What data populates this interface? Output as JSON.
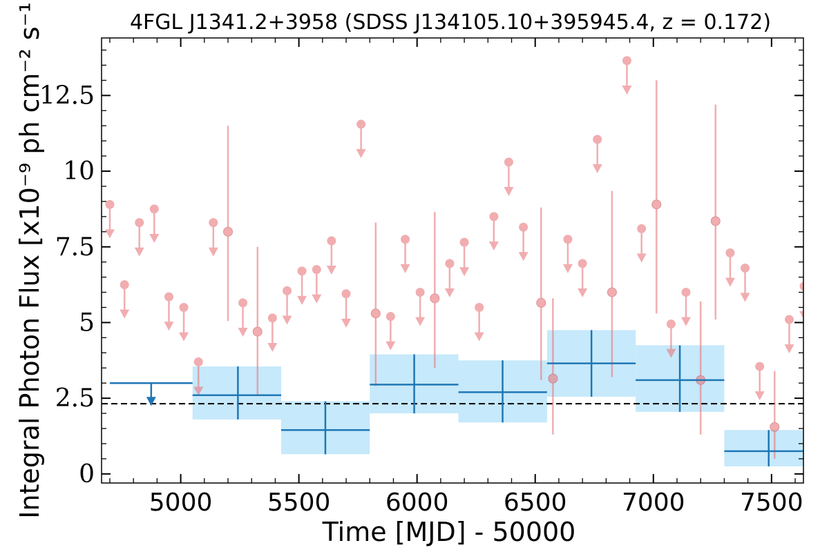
{
  "chart_data": {
    "type": "scatter",
    "title": "4FGL J1341.2+3958 (SDSS J134105.10+395945.4, z = 0.172)",
    "xlabel": "Time [MJD] - 50000",
    "ylabel": "Integral Photon Flux [x10⁻⁹ ph cm⁻² s⁻¹]",
    "xlim": [
      4665,
      7635
    ],
    "ylim": [
      -0.3,
      14.4
    ],
    "x_ticks": [
      5000,
      5500,
      6000,
      6500,
      7000,
      7500
    ],
    "x_tick_labels": [
      "5000",
      "5500",
      "6000",
      "6500",
      "7000",
      "7500"
    ],
    "y_ticks": [
      0,
      2.5,
      5,
      7.5,
      10,
      12.5
    ],
    "y_tick_labels": [
      "0",
      "2.5",
      "5",
      "7.5",
      "10",
      "12.5"
    ],
    "mean_flux": 2.32,
    "colors": {
      "short_bins": "#e8777c",
      "long_bins": "#1f77b4",
      "long_bin_band": "#c6e9fb",
      "mean_line": "#000000"
    },
    "series": [
      {
        "kind": "short_bins",
        "upper_limits": [
          {
            "x": 4700,
            "y": 8.9
          },
          {
            "x": 4762,
            "y": 6.25
          },
          {
            "x": 4825,
            "y": 8.3
          },
          {
            "x": 4888,
            "y": 8.75
          },
          {
            "x": 4950,
            "y": 5.85
          },
          {
            "x": 5013,
            "y": 5.5
          },
          {
            "x": 5075,
            "y": 3.7
          },
          {
            "x": 5138,
            "y": 8.3
          },
          {
            "x": 5263,
            "y": 5.65
          },
          {
            "x": 5388,
            "y": 5.15
          },
          {
            "x": 5450,
            "y": 6.05
          },
          {
            "x": 5513,
            "y": 6.7
          },
          {
            "x": 5575,
            "y": 6.75
          },
          {
            "x": 5638,
            "y": 7.7
          },
          {
            "x": 5700,
            "y": 5.95
          },
          {
            "x": 5763,
            "y": 11.55
          },
          {
            "x": 5888,
            "y": 5.2
          },
          {
            "x": 5950,
            "y": 7.75
          },
          {
            "x": 6013,
            "y": 6.0
          },
          {
            "x": 6138,
            "y": 6.95
          },
          {
            "x": 6200,
            "y": 7.65
          },
          {
            "x": 6263,
            "y": 5.5
          },
          {
            "x": 6325,
            "y": 8.5
          },
          {
            "x": 6388,
            "y": 10.3
          },
          {
            "x": 6450,
            "y": 8.15
          },
          {
            "x": 6638,
            "y": 7.75
          },
          {
            "x": 6700,
            "y": 6.95
          },
          {
            "x": 6763,
            "y": 11.05
          },
          {
            "x": 6888,
            "y": 13.65
          },
          {
            "x": 6950,
            "y": 8.1
          },
          {
            "x": 7075,
            "y": 4.95
          },
          {
            "x": 7138,
            "y": 6.0
          },
          {
            "x": 7325,
            "y": 7.3
          },
          {
            "x": 7388,
            "y": 6.8
          },
          {
            "x": 7450,
            "y": 3.55
          },
          {
            "x": 7575,
            "y": 5.1
          },
          {
            "x": 7638,
            "y": 6.2
          }
        ],
        "detections": [
          {
            "x": 5200,
            "y": 8.0,
            "ylo": 5.05,
            "yhi": 11.5
          },
          {
            "x": 5325,
            "y": 4.7,
            "ylo": 2.6,
            "yhi": 7.5
          },
          {
            "x": 5825,
            "y": 5.3,
            "ylo": 2.9,
            "yhi": 8.3
          },
          {
            "x": 6075,
            "y": 5.8,
            "ylo": 3.5,
            "yhi": 8.65
          },
          {
            "x": 6525,
            "y": 5.65,
            "ylo": 3.1,
            "yhi": 8.8
          },
          {
            "x": 6575,
            "y": 3.15,
            "ylo": 1.3,
            "yhi": 5.8
          },
          {
            "x": 6825,
            "y": 6.0,
            "ylo": 3.2,
            "yhi": 9.35
          },
          {
            "x": 7013,
            "y": 8.9,
            "ylo": 5.3,
            "yhi": 13.0
          },
          {
            "x": 7200,
            "y": 3.1,
            "ylo": 1.3,
            "yhi": 5.7
          },
          {
            "x": 7263,
            "y": 8.35,
            "ylo": 5.1,
            "yhi": 12.2
          },
          {
            "x": 7513,
            "y": 1.55,
            "ylo": 0.5,
            "yhi": 3.4
          }
        ]
      },
      {
        "kind": "long_bins",
        "upper_limits": [
          {
            "x": 4875,
            "xlo": 4700,
            "xhi": 5050,
            "y": 3.0
          }
        ],
        "detections": [
          {
            "x": 5242,
            "xlo": 5050,
            "xhi": 5425,
            "y": 2.6,
            "ylo": 1.8,
            "yhi": 3.55
          },
          {
            "x": 5612,
            "xlo": 5425,
            "xhi": 5800,
            "y": 1.45,
            "ylo": 0.65,
            "yhi": 2.4
          },
          {
            "x": 5988,
            "xlo": 5800,
            "xhi": 6175,
            "y": 2.95,
            "ylo": 2.0,
            "yhi": 3.95
          },
          {
            "x": 6362,
            "xlo": 6175,
            "xhi": 6550,
            "y": 2.7,
            "ylo": 1.7,
            "yhi": 3.75
          },
          {
            "x": 6738,
            "xlo": 6550,
            "xhi": 6925,
            "y": 3.65,
            "ylo": 2.55,
            "yhi": 4.75
          },
          {
            "x": 7112,
            "xlo": 6925,
            "xhi": 7300,
            "y": 3.1,
            "ylo": 2.05,
            "yhi": 4.25
          },
          {
            "x": 7488,
            "xlo": 7300,
            "xhi": 7675,
            "y": 0.75,
            "ylo": 0.25,
            "yhi": 1.45
          }
        ]
      }
    ]
  }
}
